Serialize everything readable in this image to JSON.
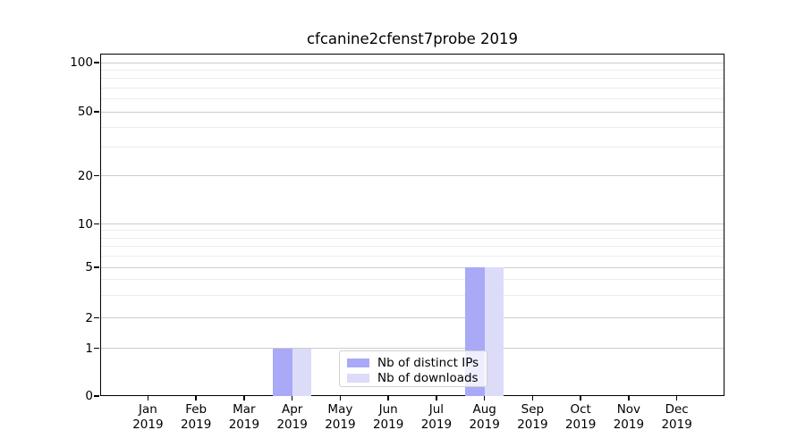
{
  "chart_data": {
    "type": "bar",
    "title": "cfcanine2cfenst7probe 2019",
    "year_label": "2019",
    "categories": [
      "Jan",
      "Feb",
      "Mar",
      "Apr",
      "May",
      "Jun",
      "Jul",
      "Aug",
      "Sep",
      "Oct",
      "Nov",
      "Dec"
    ],
    "series": [
      {
        "name": "Nb of distinct IPs",
        "color": "#a9a9f7",
        "values": [
          0,
          0,
          0,
          1,
          0,
          0,
          0,
          5,
          0,
          0,
          0,
          0
        ]
      },
      {
        "name": "Nb of downloads",
        "color": "#dcdcf8",
        "values": [
          0,
          0,
          0,
          1,
          0,
          0,
          0,
          5,
          0,
          0,
          0,
          0
        ]
      }
    ],
    "y_axis": {
      "scale": "symlog",
      "major_ticks": [
        0,
        1,
        2,
        5,
        10,
        20,
        50,
        100
      ],
      "minor_ticks": [
        3,
        4,
        6,
        7,
        8,
        9,
        30,
        40,
        60,
        70,
        80,
        90
      ],
      "range": [
        0,
        110
      ]
    },
    "xlabel": "",
    "ylabel": "",
    "grid": true,
    "legend": {
      "position": "lower center",
      "entries": [
        "Nb of distinct IPs",
        "Nb of downloads"
      ]
    },
    "colors": {
      "major_grid": "#cccccc",
      "minor_grid": "#ececec",
      "axis": "#000000",
      "background": "#ffffff"
    }
  }
}
